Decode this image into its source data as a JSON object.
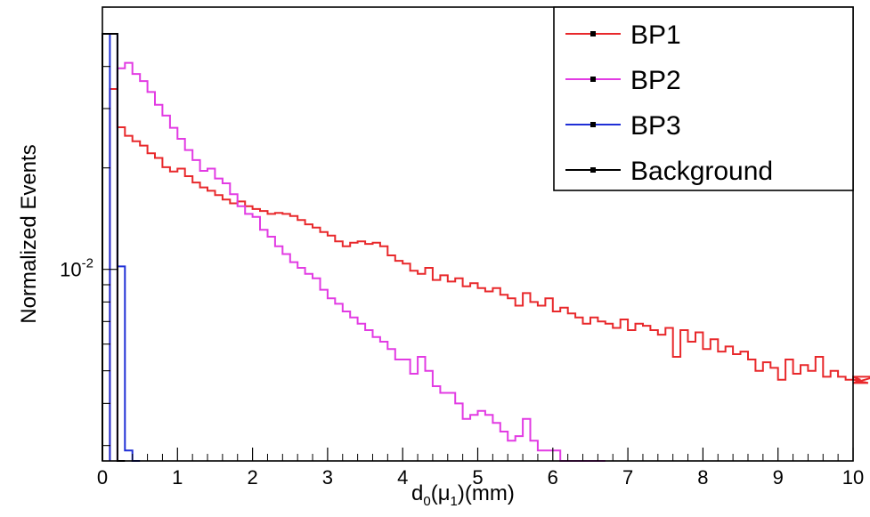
{
  "chart_data": {
    "type": "line",
    "style": "step-histogram",
    "title": "",
    "xlabel": "d",
    "xlabel_sub": "0",
    "xlabel_mid": "(μ",
    "xlabel_sub2": "1",
    "xlabel_end": ")(mm)",
    "ylabel": "Normalized Events",
    "xlim": [
      0,
      10
    ],
    "ylim": [
      0.0027,
      0.06
    ],
    "y_scale": "log",
    "x_ticks": [
      "0",
      "1",
      "2",
      "3",
      "4",
      "5",
      "6",
      "7",
      "8",
      "9",
      "10"
    ],
    "y_tick_label_base": "10",
    "y_tick_label_exp": "-2",
    "y_tick_value": 0.01,
    "legend_position": "top-right",
    "grid": false,
    "series": [
      {
        "name": "BP1",
        "color": "#e8282b",
        "bin_width": 0.1,
        "x_start": 0.1,
        "values": [
          0.0343,
          0.0264,
          0.0249,
          0.024,
          0.0233,
          0.0221,
          0.0214,
          0.0201,
          0.0195,
          0.0199,
          0.0189,
          0.0181,
          0.0175,
          0.0171,
          0.0166,
          0.0161,
          0.0157,
          0.0159,
          0.0154,
          0.0151,
          0.0149,
          0.0146,
          0.0147,
          0.0146,
          0.0144,
          0.014,
          0.0136,
          0.0133,
          0.0129,
          0.0126,
          0.0121,
          0.0117,
          0.012,
          0.0121,
          0.0119,
          0.012,
          0.0117,
          0.011,
          0.0106,
          0.0104,
          0.0099,
          0.0097,
          0.0101,
          0.0093,
          0.0096,
          0.0092,
          0.0094,
          0.0089,
          0.0091,
          0.0088,
          0.0086,
          0.0088,
          0.0084,
          0.0082,
          0.0078,
          0.0085,
          0.008,
          0.0078,
          0.0082,
          0.0075,
          0.0077,
          0.0074,
          0.0072,
          0.0069,
          0.0072,
          0.007,
          0.0069,
          0.0067,
          0.0071,
          0.0066,
          0.0069,
          0.0068,
          0.0066,
          0.0064,
          0.0067,
          0.0055,
          0.0066,
          0.0061,
          0.0065,
          0.0058,
          0.0062,
          0.0057,
          0.0059,
          0.0056,
          0.0057,
          0.0054,
          0.005,
          0.0053,
          0.0051,
          0.0047,
          0.0054,
          0.0049,
          0.0052,
          0.005,
          0.0055,
          0.0048,
          0.005,
          0.0048,
          0.0047,
          0.0048,
          0.0047,
          0.0046,
          0.0048
        ]
      },
      {
        "name": "BP2",
        "color": "#e23be3",
        "bin_width": 0.1,
        "x_start": 0.2,
        "values": [
          0.0395,
          0.041,
          0.038,
          0.0362,
          0.0336,
          0.0308,
          0.0286,
          0.0263,
          0.0244,
          0.0226,
          0.0211,
          0.0196,
          0.0199,
          0.0186,
          0.018,
          0.0167,
          0.0154,
          0.0146,
          0.0143,
          0.0131,
          0.0125,
          0.0117,
          0.0111,
          0.0105,
          0.0101,
          0.0097,
          0.0094,
          0.0087,
          0.0082,
          0.0079,
          0.0075,
          0.0072,
          0.0069,
          0.0066,
          0.0063,
          0.0061,
          0.0058,
          0.0054,
          0.0054,
          0.0049,
          0.0055,
          0.005,
          0.0045,
          0.0043,
          0.0043,
          0.004,
          0.0036,
          0.0037,
          0.0038,
          0.0037,
          0.0035,
          0.0033,
          0.0031,
          0.0032,
          0.0036,
          0.0031,
          0.0029,
          0.0029,
          0.0029,
          0.0026,
          0.0022,
          0.0022,
          0.0022,
          0.0027,
          0.0022
        ]
      },
      {
        "name": "BP3",
        "color": "#1f2fd6",
        "bin_width": 0.1,
        "x_start": 0.1,
        "values": [
          0.05,
          0.0102,
          0.0029,
          0.0024
        ]
      },
      {
        "name": "Background",
        "color": "#000000",
        "bin_width": 0.1,
        "x_start": 0.0,
        "values": [
          0.05,
          0.05,
          0.0024
        ]
      }
    ]
  }
}
